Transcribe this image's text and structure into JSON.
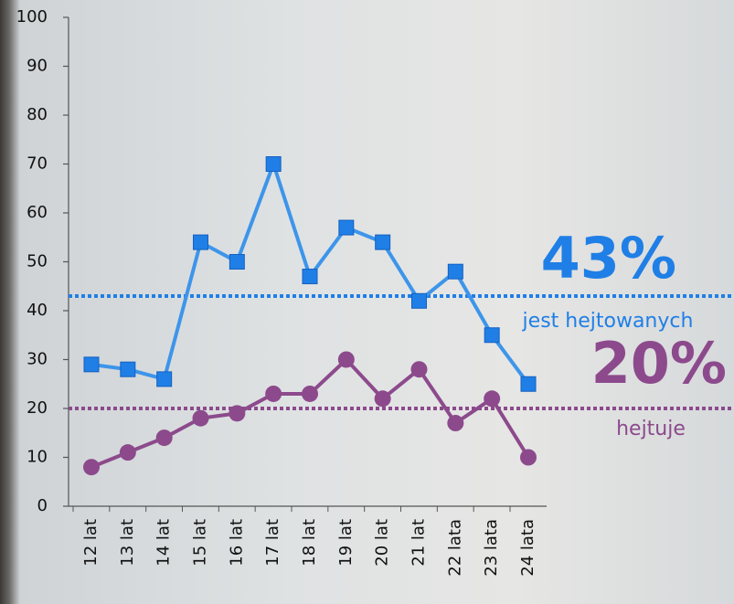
{
  "chart_data": {
    "type": "line",
    "categories": [
      "12 lat",
      "13 lat",
      "14 lat",
      "15 lat",
      "16 lat",
      "17 lat",
      "18 lat",
      "19 lat",
      "20 lat",
      "21 lat",
      "22 lata",
      "23 lata",
      "24 lata"
    ],
    "series": [
      {
        "color": "#3d95ea",
        "marker_color": "#1f7fe6",
        "marker": "square",
        "values": [
          29,
          28,
          26,
          54,
          50,
          70,
          47,
          57,
          54,
          42,
          48,
          35,
          25
        ]
      },
      {
        "color": "#8c4a8c",
        "marker_color": "#8c4a8c",
        "marker": "circle",
        "values": [
          8,
          11,
          14,
          18,
          19,
          23,
          23,
          30,
          22,
          28,
          17,
          22,
          10
        ]
      }
    ],
    "ylim": [
      0,
      100
    ],
    "yticks": [
      0,
      10,
      20,
      30,
      40,
      50,
      60,
      70,
      80,
      90,
      100
    ],
    "reference_lines": [
      {
        "value": 43,
        "label": "43%",
        "caption": "jest hejtowanych",
        "color": "#1f7fe6"
      },
      {
        "value": 20,
        "label": "20%",
        "caption": "hejtuje",
        "color": "#8c4a8c"
      }
    ]
  }
}
